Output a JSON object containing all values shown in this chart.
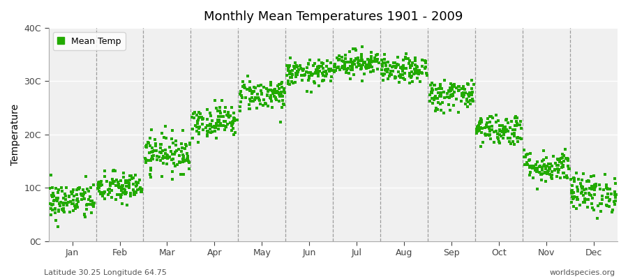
{
  "title": "Monthly Mean Temperatures 1901 - 2009",
  "ylabel": "Temperature",
  "subtitle_left": "Latitude 30.25 Longitude 64.75",
  "subtitle_right": "worldspecies.org",
  "legend_label": "Mean Temp",
  "marker_color": "#22aa00",
  "plot_bg_color": "#f0f0f0",
  "fig_bg_color": "#ffffff",
  "hline_color": "#ffffff",
  "vline_color": "#888888",
  "ylim": [
    0,
    40
  ],
  "ytick_labels": [
    "0C",
    "10C",
    "20C",
    "30C",
    "40C"
  ],
  "ytick_values": [
    0,
    10,
    20,
    30,
    40
  ],
  "months": [
    "Jan",
    "Feb",
    "Mar",
    "Apr",
    "May",
    "Jun",
    "Jul",
    "Aug",
    "Sep",
    "Oct",
    "Nov",
    "Dec"
  ],
  "month_means": [
    7.5,
    10.0,
    16.5,
    22.5,
    27.5,
    31.5,
    33.5,
    32.0,
    27.5,
    21.0,
    14.0,
    9.0
  ],
  "month_stds": [
    1.8,
    1.5,
    1.8,
    1.5,
    1.5,
    1.2,
    1.2,
    1.2,
    1.5,
    1.5,
    1.5,
    1.8
  ],
  "n_years": 109,
  "seed": 42,
  "marker_size": 6,
  "title_fontsize": 13,
  "axis_fontsize": 9,
  "ylabel_fontsize": 10
}
